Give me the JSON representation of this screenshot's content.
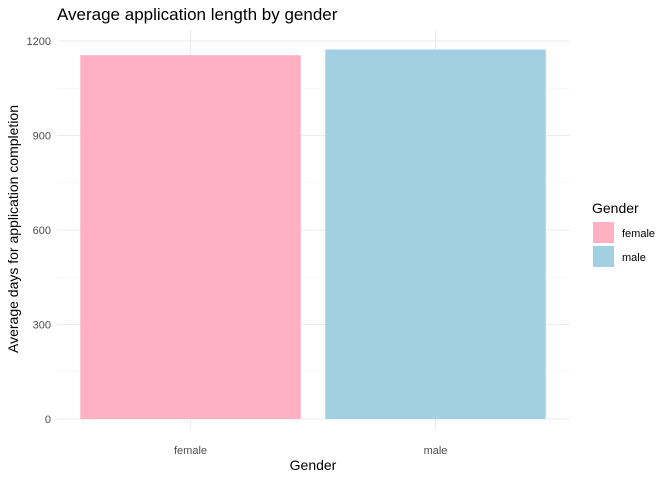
{
  "chart_data": {
    "type": "bar",
    "title": "Average application length by gender",
    "xlabel": "Gender",
    "ylabel": "Average days for application completion",
    "categories": [
      "female",
      "male"
    ],
    "values": [
      1155,
      1173
    ],
    "colors": [
      "#FFB0C3",
      "#A0D0E1"
    ],
    "ylim": [
      0,
      1200
    ],
    "yticks": [
      0,
      300,
      600,
      900,
      1200
    ],
    "grid": true,
    "legend": {
      "title": "Gender",
      "placement": "right",
      "entries": [
        "female",
        "male"
      ]
    }
  }
}
